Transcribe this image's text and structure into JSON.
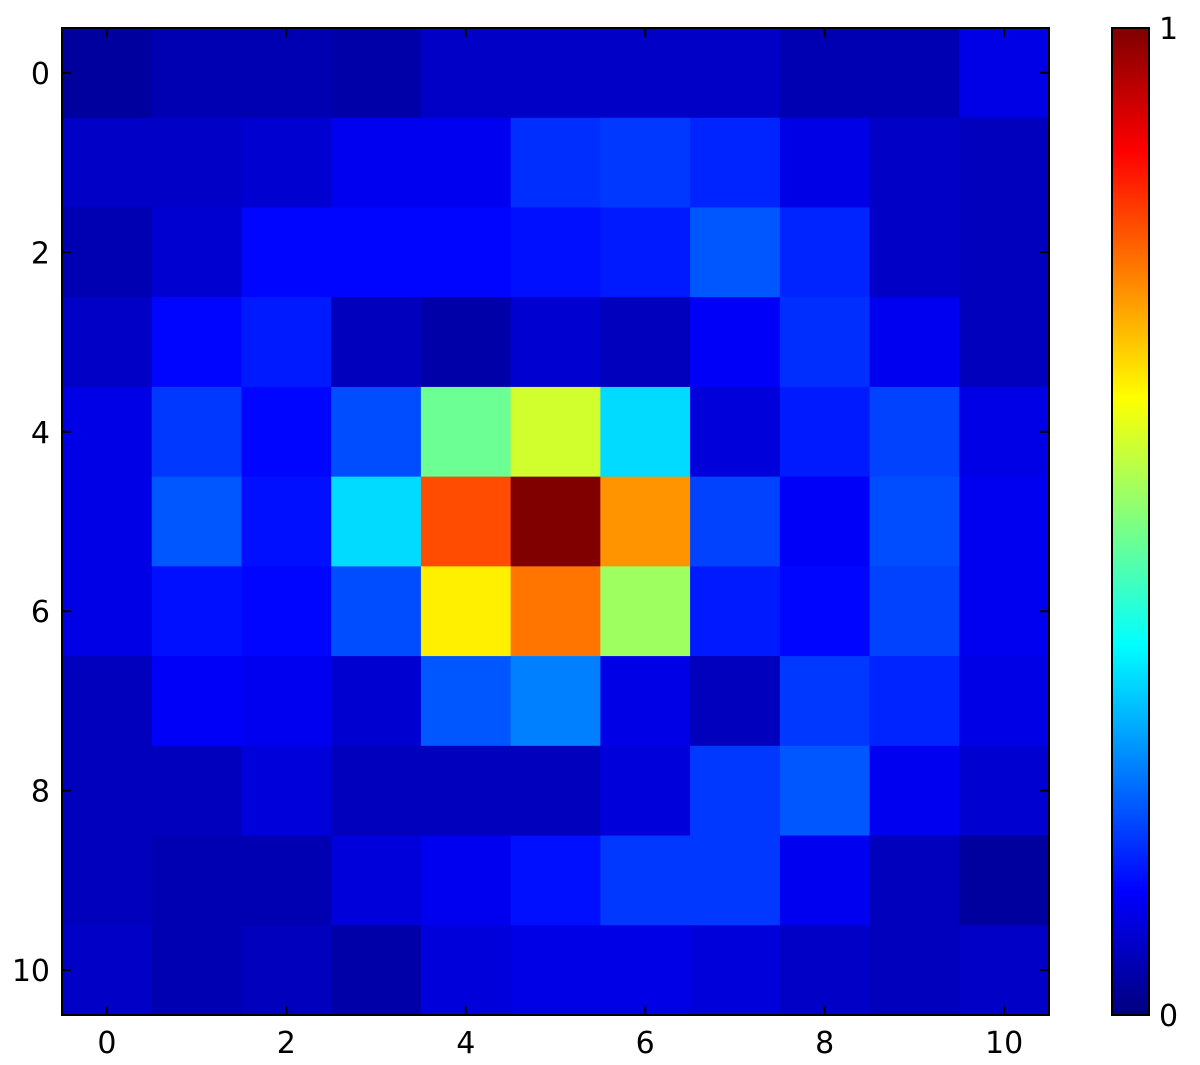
{
  "chart_data": {
    "type": "heatmap",
    "title": "",
    "xlabel": "",
    "ylabel": "",
    "colormap": "jet",
    "x_ticks": [
      "0",
      "2",
      "4",
      "6",
      "8",
      "10"
    ],
    "y_ticks": [
      "0",
      "2",
      "4",
      "6",
      "8",
      "10"
    ],
    "colorbar": {
      "min": 0,
      "max": 1,
      "tick_labels": [
        "0",
        "1"
      ]
    },
    "values": [
      [
        0.03,
        0.05,
        0.05,
        0.04,
        0.07,
        0.07,
        0.07,
        0.07,
        0.05,
        0.05,
        0.1
      ],
      [
        0.07,
        0.07,
        0.08,
        0.11,
        0.11,
        0.17,
        0.18,
        0.16,
        0.1,
        0.07,
        0.06
      ],
      [
        0.05,
        0.08,
        0.13,
        0.13,
        0.13,
        0.14,
        0.15,
        0.21,
        0.16,
        0.07,
        0.06
      ],
      [
        0.07,
        0.13,
        0.15,
        0.06,
        0.04,
        0.08,
        0.06,
        0.12,
        0.17,
        0.11,
        0.06
      ],
      [
        0.1,
        0.18,
        0.13,
        0.2,
        0.48,
        0.58,
        0.34,
        0.09,
        0.15,
        0.19,
        0.1
      ],
      [
        0.1,
        0.21,
        0.14,
        0.34,
        0.8,
        1.0,
        0.73,
        0.19,
        0.12,
        0.2,
        0.11
      ],
      [
        0.1,
        0.14,
        0.13,
        0.2,
        0.64,
        0.76,
        0.53,
        0.15,
        0.13,
        0.19,
        0.11
      ],
      [
        0.06,
        0.12,
        0.11,
        0.08,
        0.21,
        0.25,
        0.1,
        0.06,
        0.18,
        0.16,
        0.1
      ],
      [
        0.06,
        0.06,
        0.09,
        0.06,
        0.06,
        0.06,
        0.09,
        0.18,
        0.21,
        0.11,
        0.08
      ],
      [
        0.06,
        0.05,
        0.05,
        0.09,
        0.11,
        0.14,
        0.18,
        0.18,
        0.11,
        0.06,
        0.03
      ],
      [
        0.07,
        0.05,
        0.06,
        0.04,
        0.09,
        0.1,
        0.1,
        0.09,
        0.07,
        0.06,
        0.07
      ]
    ]
  }
}
